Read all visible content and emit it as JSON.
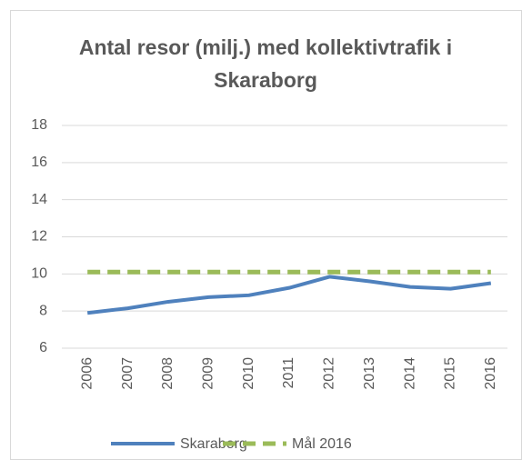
{
  "chart_data": {
    "type": "line",
    "title": "Antal resor (milj.) med kollektivtrafik i Skaraborg",
    "categories": [
      "2006",
      "2007",
      "2008",
      "2009",
      "2010",
      "2011",
      "2012",
      "2013",
      "2014",
      "2015",
      "2016"
    ],
    "series": [
      {
        "name": "Skaraborg",
        "color": "#4f81bd",
        "dashed": false,
        "values": [
          7.9,
          8.15,
          8.5,
          8.75,
          8.85,
          9.25,
          9.85,
          9.6,
          9.3,
          9.2,
          9.5
        ]
      },
      {
        "name": "Mål 2016",
        "color": "#9bbb59",
        "dashed": true,
        "values": [
          10.1,
          10.1,
          10.1,
          10.1,
          10.1,
          10.1,
          10.1,
          10.1,
          10.1,
          10.1,
          10.1
        ]
      }
    ],
    "ylim": [
      6,
      18
    ],
    "yticks": [
      6,
      8,
      10,
      12,
      14,
      16,
      18
    ],
    "grid": true,
    "legend": "bottom"
  }
}
